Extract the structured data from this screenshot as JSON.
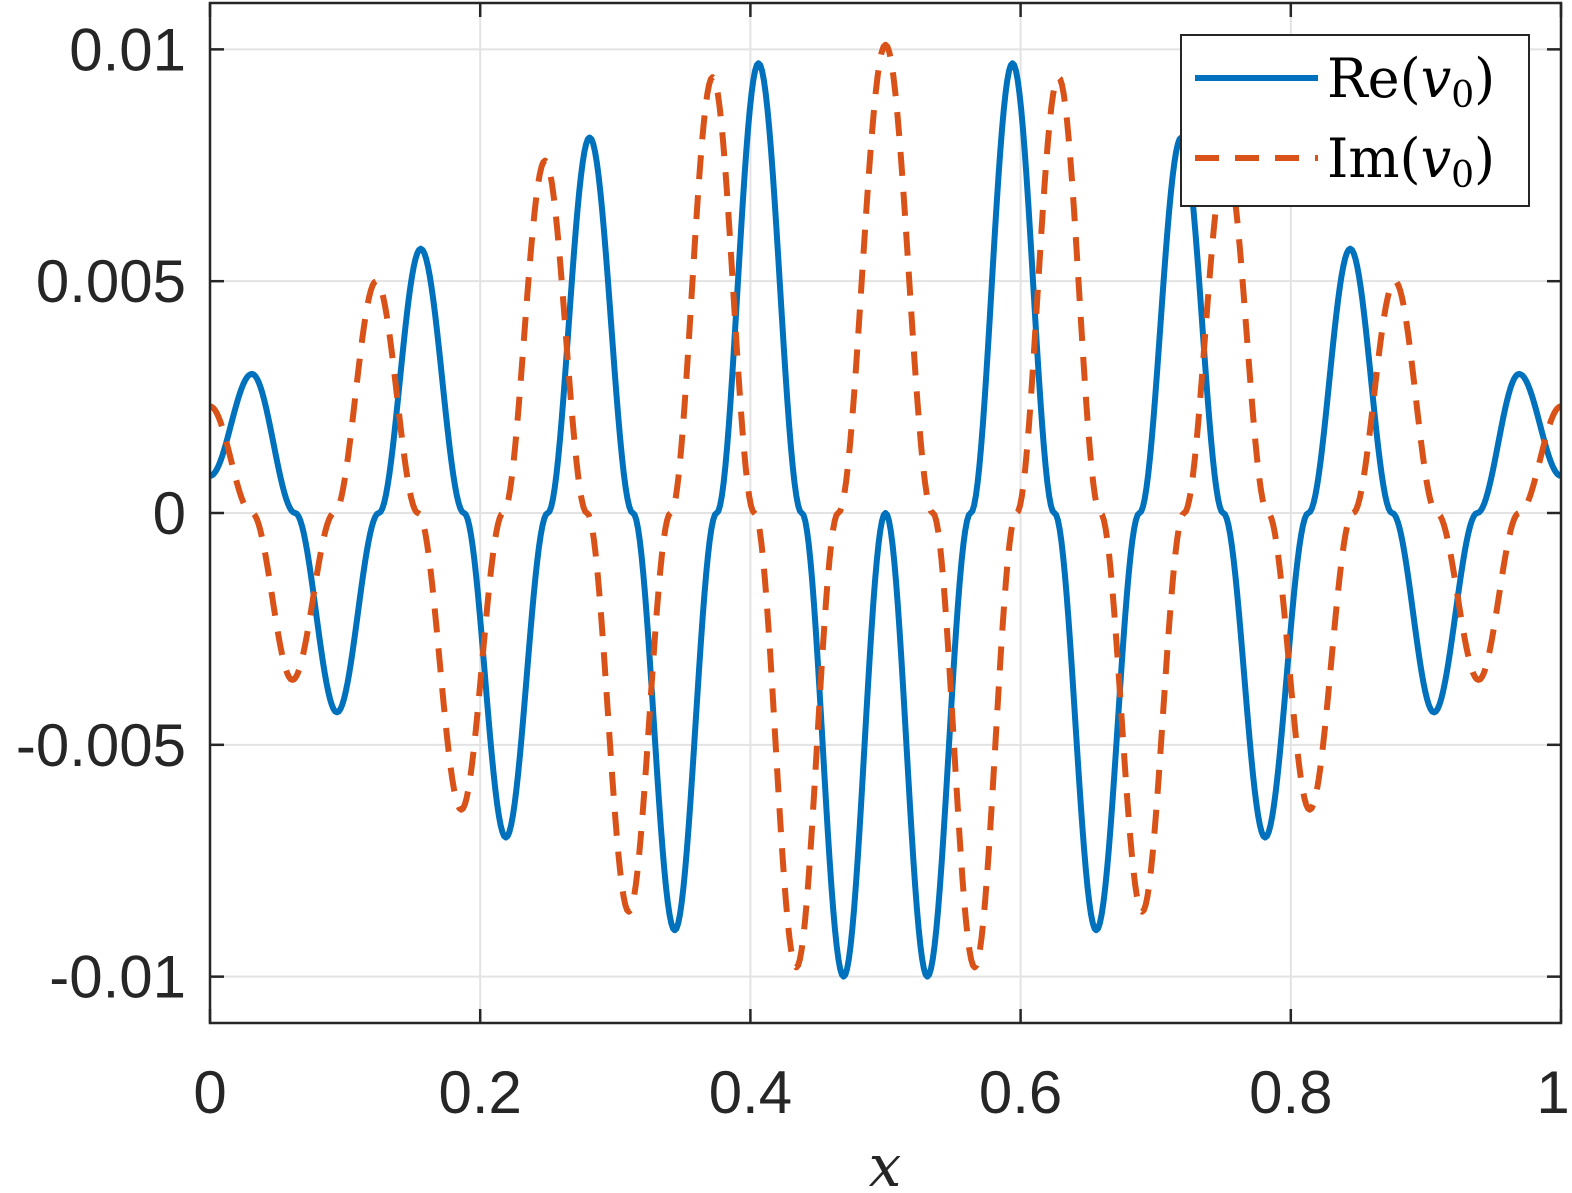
{
  "chart_data": {
    "type": "line",
    "title": "",
    "xlabel": "x",
    "ylabel": "",
    "xlim": [
      0,
      1
    ],
    "ylim": [
      -0.011,
      0.011
    ],
    "grid": true,
    "legend_position": "top-right",
    "x_ticks": [
      {
        "value": 0,
        "label": "0"
      },
      {
        "value": 0.2,
        "label": "0.2"
      },
      {
        "value": 0.4,
        "label": "0.4"
      },
      {
        "value": 0.6,
        "label": "0.6"
      },
      {
        "value": 0.8,
        "label": "0.8"
      },
      {
        "value": 1,
        "label": "1"
      }
    ],
    "y_ticks": [
      {
        "value": -0.01,
        "label": "-0.01"
      },
      {
        "value": -0.005,
        "label": "-0.005"
      },
      {
        "value": 0,
        "label": "0"
      },
      {
        "value": 0.005,
        "label": "0.005"
      },
      {
        "value": 0.01,
        "label": "0.01"
      }
    ],
    "series": [
      {
        "name": "Re(v0)",
        "legend_main": "Re(",
        "legend_var": "v",
        "legend_sub": "0",
        "legend_close": ")",
        "color": "#0072BD",
        "style": "solid",
        "x": [
          0,
          0.031,
          0.063,
          0.094,
          0.125,
          0.156,
          0.188,
          0.219,
          0.25,
          0.281,
          0.313,
          0.344,
          0.375,
          0.406,
          0.438,
          0.469,
          0.5,
          0.531,
          0.563,
          0.594,
          0.625,
          0.656,
          0.688,
          0.719,
          0.75,
          0.781,
          0.813,
          0.844,
          0.875,
          0.906,
          0.938,
          0.969,
          1
        ],
        "y": [
          0.0008,
          0.003,
          0,
          -0.0043,
          0,
          0.0057,
          0,
          -0.007,
          0,
          0.0081,
          0,
          -0.009,
          0,
          0.0097,
          0,
          -0.01,
          0,
          -0.01,
          0,
          0.0097,
          0,
          -0.009,
          0,
          0.0081,
          0,
          -0.007,
          0,
          0.0057,
          0,
          -0.0043,
          0,
          0.003,
          0.0008
        ]
      },
      {
        "name": "Im(v0)",
        "legend_main": "Im(",
        "legend_var": "v",
        "legend_sub": "0",
        "legend_close": ")",
        "color": "#D95319",
        "style": "dashed",
        "x": [
          0,
          0.031,
          0.061,
          0.092,
          0.123,
          0.154,
          0.186,
          0.217,
          0.248,
          0.279,
          0.31,
          0.341,
          0.372,
          0.403,
          0.434,
          0.465,
          0.5,
          0.535,
          0.566,
          0.597,
          0.628,
          0.659,
          0.69,
          0.721,
          0.752,
          0.783,
          0.814,
          0.846,
          0.877,
          0.908,
          0.939,
          0.969,
          1
        ],
        "y": [
          0.0023,
          0,
          -0.0036,
          0,
          0.005,
          0,
          -0.0064,
          0,
          0.0076,
          0,
          -0.0086,
          0,
          0.0094,
          0,
          -0.0098,
          0,
          0.0101,
          0,
          -0.0098,
          0,
          0.0094,
          0,
          -0.0086,
          0,
          0.0076,
          0,
          -0.0064,
          0,
          0.005,
          0,
          -0.0036,
          0,
          0.0023
        ]
      }
    ]
  }
}
